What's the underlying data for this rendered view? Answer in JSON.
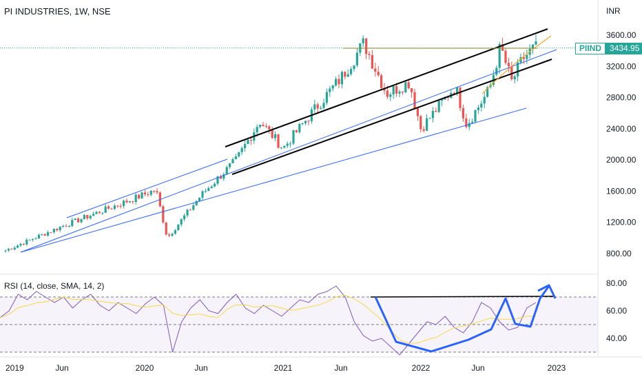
{
  "header": {
    "title": "PI INDUSTRIES, 1W, NSE",
    "currency": "INR"
  },
  "price_tag": {
    "symbol": "PIIND",
    "value": "3434.95"
  },
  "rsi_panel": {
    "label": "RSI (14, close, SMA, 14, 2)"
  },
  "colors": {
    "up": "#26a69a",
    "down": "#ef5350",
    "trendline_blue": "#2962ff",
    "trendline_black": "#000000",
    "resistance": "#b8860b",
    "rsi_line": "#7e57c2",
    "rsi_ma": "#f7d84a",
    "pattern": "#2962ff"
  },
  "chart_data": [
    {
      "type": "candlestick",
      "title": "PI INDUSTRIES, 1W, NSE",
      "ylabel": "INR",
      "ylim": [
        560,
        3820
      ],
      "y_ticks": [
        "3600.00",
        "3200.00",
        "2800.00",
        "2400.00",
        "2000.00",
        "1600.00",
        "1200.00",
        "800.00"
      ],
      "x_ticks": [
        "2019",
        "Jun",
        "2020",
        "Jun",
        "2021",
        "Jun",
        "2022",
        "Jun",
        "2023"
      ],
      "last_price": 3434.95,
      "key_closes": [
        {
          "date": "2019-01",
          "value": 840
        },
        {
          "date": "2019-06",
          "value": 1150
        },
        {
          "date": "2019-12",
          "value": 1500
        },
        {
          "date": "2020-02",
          "value": 1620
        },
        {
          "date": "2020-03",
          "value": 1000
        },
        {
          "date": "2020-06",
          "value": 1550
        },
        {
          "date": "2020-09",
          "value": 2000
        },
        {
          "date": "2020-11",
          "value": 2500
        },
        {
          "date": "2021-01",
          "value": 2150
        },
        {
          "date": "2021-04",
          "value": 2700
        },
        {
          "date": "2021-06",
          "value": 3050
        },
        {
          "date": "2021-08",
          "value": 3500
        },
        {
          "date": "2021-10",
          "value": 2850
        },
        {
          "date": "2021-12",
          "value": 3000
        },
        {
          "date": "2022-01",
          "value": 2400
        },
        {
          "date": "2022-04",
          "value": 2950
        },
        {
          "date": "2022-05",
          "value": 2450
        },
        {
          "date": "2022-07",
          "value": 2900
        },
        {
          "date": "2022-08",
          "value": 3450
        },
        {
          "date": "2022-09",
          "value": 3000
        },
        {
          "date": "2022-10",
          "value": 3300
        },
        {
          "date": "2022-11",
          "value": 3435
        }
      ]
    },
    {
      "type": "line",
      "title": "RSI (14, close, SMA, 14, 2)",
      "ylim": [
        25,
        85
      ],
      "y_ticks": [
        "80.00",
        "60.00",
        "40.00"
      ],
      "x_ticks": [
        "2019",
        "Jun",
        "2020",
        "Jun",
        "2021",
        "Jun",
        "2022",
        "Jun",
        "2023"
      ],
      "series": [
        {
          "values": [
            55,
            60,
            72,
            68,
            74,
            70,
            66,
            70,
            62,
            68,
            72,
            64,
            60,
            66,
            62,
            58,
            65,
            70,
            64,
            30,
            52,
            62,
            68,
            60,
            58,
            66,
            72,
            62,
            58,
            64,
            60,
            56,
            62,
            68,
            66,
            72,
            74,
            78,
            70,
            52,
            42,
            38,
            40,
            34,
            28,
            36,
            44,
            52,
            50,
            56,
            48,
            44,
            52,
            66,
            62,
            52,
            46,
            48,
            62,
            66
          ]
        }
      ]
    }
  ]
}
